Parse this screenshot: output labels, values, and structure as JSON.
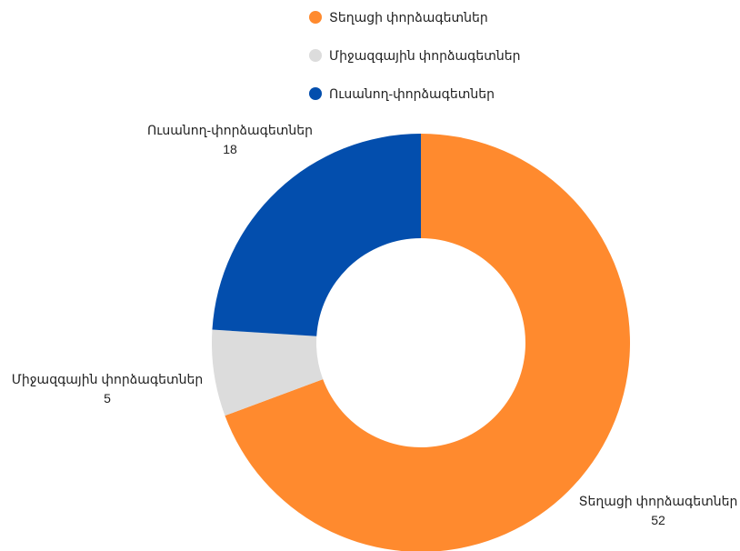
{
  "chart_data": {
    "type": "pie",
    "variant": "donut",
    "legend_position": "top",
    "series": [
      {
        "name": "Տեղացի փորձագետներ",
        "value": 52,
        "color": "#FF8A2E"
      },
      {
        "name": "Միջազգային փորձագետներ",
        "value": 5,
        "color": "#DCDCDC"
      },
      {
        "name": "Ուսանող-փորձագետներ",
        "value": 18,
        "color": "#034EAD"
      }
    ]
  }
}
